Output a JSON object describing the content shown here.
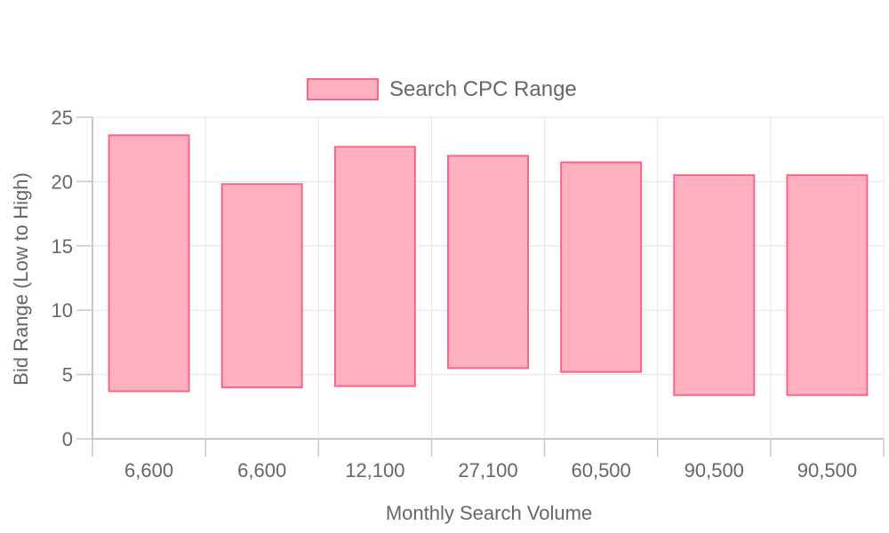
{
  "chart_data": {
    "type": "bar",
    "subtype": "floating-range",
    "legend": {
      "label": "Search CPC Range",
      "position": "top-center"
    },
    "categories": [
      "6,600",
      "6,600",
      "12,100",
      "27,100",
      "60,500",
      "90,500",
      "90,500"
    ],
    "series": [
      {
        "name": "Search CPC Range",
        "values": [
          [
            3.7,
            23.6
          ],
          [
            4.0,
            19.8
          ],
          [
            4.1,
            22.7
          ],
          [
            5.5,
            22.0
          ],
          [
            5.2,
            21.5
          ],
          [
            3.4,
            20.5
          ],
          [
            3.4,
            20.5
          ]
        ]
      }
    ],
    "xlabel": "Monthly Search Volume",
    "ylabel": "Bid Range (Low to High)",
    "ylim": [
      0,
      25
    ],
    "yticks": [
      0,
      5,
      10,
      15,
      20,
      25
    ],
    "grid": true,
    "colors": {
      "bar_fill": "#ffb1c1",
      "bar_stroke": "#ff6384",
      "grid": "#e5e5e5",
      "axis": "#c8c8c8",
      "text": "#666666"
    }
  }
}
